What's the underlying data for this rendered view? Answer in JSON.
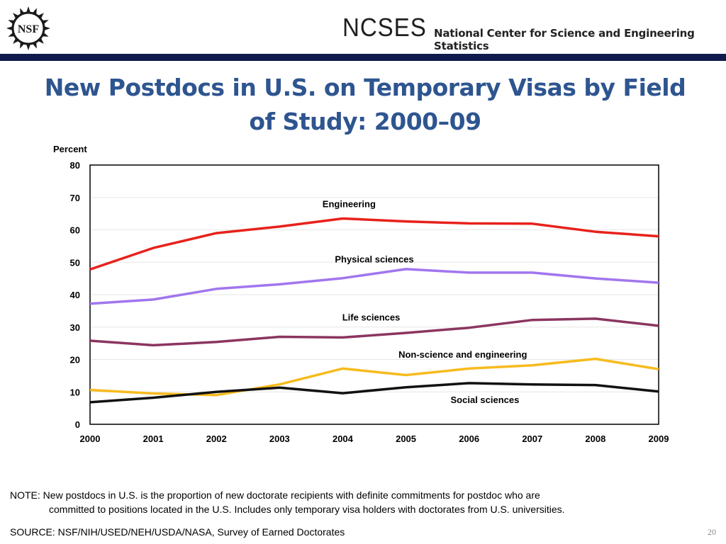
{
  "header": {
    "nsf_logo_text": "NSF",
    "ncses_name": "NCSES",
    "ncses_full_name": "National Center for Science and Engineering Statistics"
  },
  "slide": {
    "title_line1": "New Postdocs in U.S. on Temporary Visas by Field",
    "title_line2": "of Study: 2000–09",
    "note_line1": "NOTE: New postdocs in U.S. is the proportion of new doctorate recipients with definite commitments for postdoc who are",
    "note_line2": "committed to positions located in the U.S.  Includes only temporary visa holders with doctorates from U.S. universities.",
    "source": "SOURCE:  NSF/NIH/USED/NEH/USDA/NASA, Survey of Earned Doctorates",
    "page_number": "20"
  },
  "chart_data": {
    "type": "line",
    "title": "",
    "ylabel": "Percent",
    "xlabel": "",
    "x": [
      "2000",
      "2001",
      "2002",
      "2003",
      "2004",
      "2005",
      "2006",
      "2007",
      "2008",
      "2009"
    ],
    "ylim": [
      0,
      80
    ],
    "yticks": [
      0,
      10,
      20,
      30,
      40,
      50,
      60,
      70,
      80
    ],
    "grid": "horizontal",
    "legend": "inline labels",
    "series": [
      {
        "name": "Engineering",
        "color": "#e8211b",
        "values": [
          47.8,
          54.4,
          59.0,
          61.0,
          63.5,
          62.6,
          62.0,
          61.9,
          59.4,
          58.0
        ]
      },
      {
        "name": "Physical sciences",
        "color": "#a176ee",
        "values": [
          37.2,
          38.5,
          41.8,
          43.2,
          45.1,
          47.9,
          46.8,
          46.8,
          45.0,
          43.7
        ]
      },
      {
        "name": "Life sciences",
        "color": "#8b3560",
        "values": [
          25.8,
          24.4,
          25.4,
          27.0,
          26.8,
          28.2,
          29.8,
          32.2,
          32.6,
          30.4
        ]
      },
      {
        "name": "Non-science and engineering",
        "color": "#f7bb1e",
        "values": [
          10.6,
          9.5,
          9.0,
          12.3,
          17.2,
          15.2,
          17.2,
          18.2,
          20.2,
          17.0
        ]
      },
      {
        "name": "Social sciences",
        "color": "#111111",
        "values": [
          6.8,
          8.2,
          10.0,
          11.3,
          9.6,
          11.4,
          12.7,
          12.3,
          12.1,
          10.1
        ]
      }
    ]
  }
}
